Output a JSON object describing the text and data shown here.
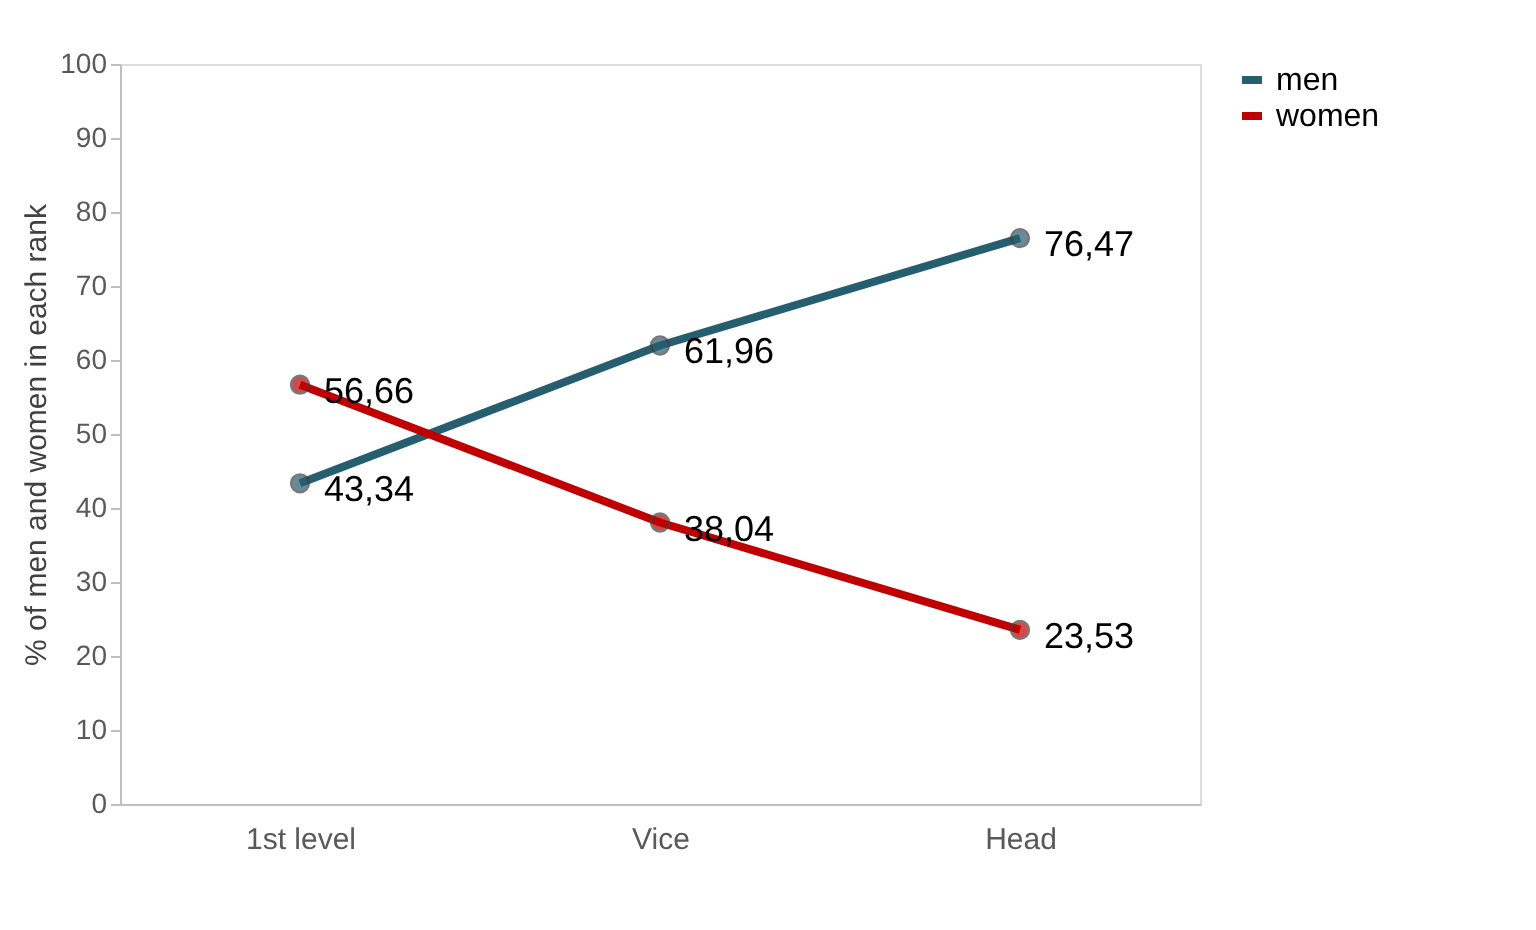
{
  "chart_data": {
    "type": "line",
    "ylabel": "% of men and women in each rank",
    "categories": [
      "1st level",
      "Vice",
      "Head"
    ],
    "series": [
      {
        "name": "men",
        "color": "#255e6e",
        "values": [
          43.34,
          61.96,
          76.47
        ],
        "value_labels": [
          "43,34",
          "61,96",
          "76,47"
        ]
      },
      {
        "name": "women",
        "color": "#c00000",
        "values": [
          56.66,
          38.04,
          23.53
        ],
        "value_labels": [
          "56,66",
          "38,04",
          "23,53"
        ]
      }
    ],
    "ylim": [
      0,
      100
    ],
    "yticks": [
      0,
      10,
      20,
      30,
      40,
      50,
      60,
      70,
      80,
      90,
      100
    ],
    "grid": false,
    "legend": "right",
    "marker": "circle",
    "line_style": "solid"
  }
}
